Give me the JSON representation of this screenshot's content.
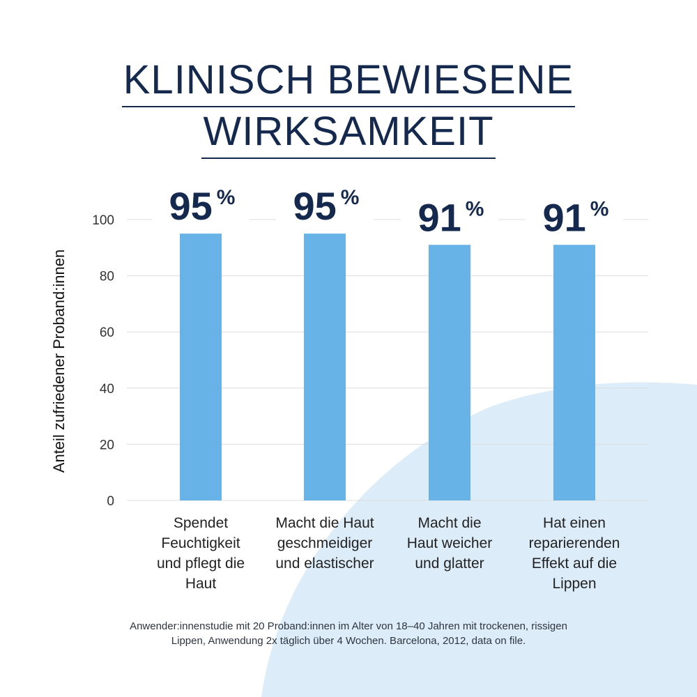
{
  "title": {
    "line1": "KLINISCH BEWIESENE",
    "line2": "WIRKSAMKEIT"
  },
  "footnote": {
    "line1": "Anwender:innenstudie mit 20 Proband:innen im Alter von 18–40 Jahren mit trockenen, rissigen",
    "line2": "Lippen, Anwendung 2x täglich über 4 Wochen. Barcelona, 2012, data on file."
  },
  "colors": {
    "bar": "#67b2e7",
    "title": "#15294f",
    "value_labels": "#15294f",
    "grid": "#dcdcdc",
    "background_shape": "#dcecf8"
  },
  "chart_data": {
    "type": "bar",
    "categories": [
      [
        "Spendet",
        "Feuchtigkeit",
        "und pflegt die",
        "Haut"
      ],
      [
        "Macht die Haut",
        "geschmeidiger",
        "und elastischer"
      ],
      [
        "Macht die",
        "Haut weicher",
        "und glatter"
      ],
      [
        "Hat einen",
        "reparierenden",
        "Effekt auf die",
        "Lippen"
      ]
    ],
    "values": [
      95,
      95,
      91,
      91
    ],
    "value_labels": [
      "95",
      "95",
      "91",
      "91"
    ],
    "value_suffix": "%",
    "ylabel": "Anteil zufriedener Proband:innen",
    "ylim": [
      0,
      100
    ],
    "yticks": [
      0,
      20,
      40,
      60,
      80,
      100
    ],
    "grid": true
  }
}
